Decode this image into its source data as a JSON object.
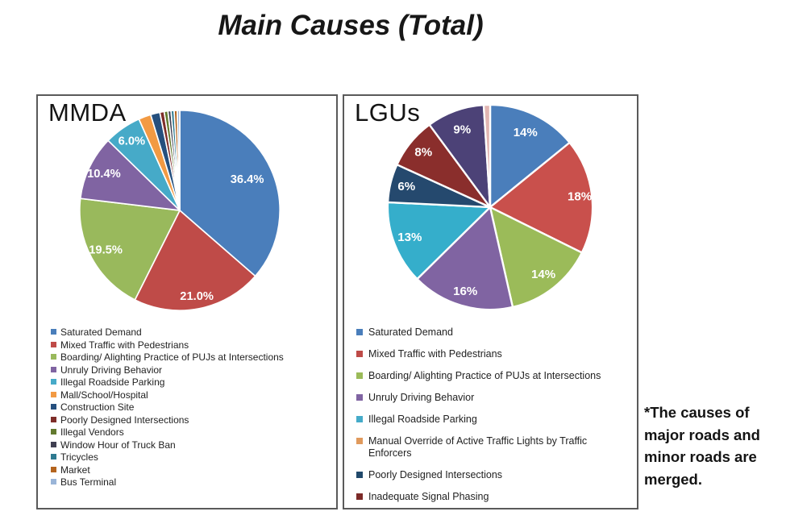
{
  "title": "Main Causes (Total)",
  "note": "*The causes of major roads and minor roads are merged.",
  "chart_data": [
    {
      "type": "pie",
      "title": "MMDA",
      "value_unit": "percent",
      "start_angle_deg": 0,
      "direction": "clockwise",
      "legend_position": "bottom-left",
      "slices": [
        {
          "label": "Saturated Demand",
          "value": 36.4,
          "display": "36.4%",
          "color": "#4a7ebb",
          "lr": 0.74
        },
        {
          "label": "Mixed Traffic with Pedestrians",
          "value": 21.0,
          "display": "21.0%",
          "color": "#bf4b48",
          "lr": 0.88
        },
        {
          "label": "Boarding/ Alighting Practice of PUJs at Intersections",
          "value": 19.5,
          "display": "19.5%",
          "color": "#99b95c",
          "lr": 0.84
        },
        {
          "label": "Unruly Driving Behavior",
          "value": 10.4,
          "display": "10.4%",
          "color": "#8064a2",
          "lr": 0.84
        },
        {
          "label": "Illegal Roadside Parking",
          "value": 6.0,
          "display": "6.0%",
          "color": "#46aac8",
          "lr": 0.84
        },
        {
          "label": "Mall/School/Hospital",
          "value": 2.0,
          "display": "",
          "color": "#f29a43"
        },
        {
          "label": "Construction Site",
          "value": 1.5,
          "display": "",
          "color": "#26507e"
        },
        {
          "label": "Poorly Designed Intersections",
          "value": 0.7,
          "display": "",
          "color": "#7e2d29"
        },
        {
          "label": "Illegal Vendors",
          "value": 0.6,
          "display": "",
          "color": "#637a2f"
        },
        {
          "label": "Window Hour of Truck Ban",
          "value": 0.5,
          "display": "",
          "color": "#3f3f51"
        },
        {
          "label": "Tricycles",
          "value": 0.5,
          "display": "",
          "color": "#2e7a90"
        },
        {
          "label": "Market",
          "value": 0.5,
          "display": "",
          "color": "#b4641e"
        },
        {
          "label": "Bus Terminal",
          "value": 0.4,
          "display": "",
          "color": "#9ab5d8"
        }
      ],
      "legend": [
        {
          "label": "Saturated Demand",
          "color": "#4a7ebb"
        },
        {
          "label": "Mixed Traffic with Pedestrians",
          "color": "#bf4b48"
        },
        {
          "label": "Boarding/ Alighting Practice of PUJs at Intersections",
          "color": "#99b95c"
        },
        {
          "label": "Unruly Driving Behavior",
          "color": "#8064a2"
        },
        {
          "label": "Illegal Roadside Parking",
          "color": "#46aac8"
        },
        {
          "label": "Mall/School/Hospital",
          "color": "#f29a43"
        },
        {
          "label": "Construction Site",
          "color": "#26507e"
        },
        {
          "label": "Poorly Designed Intersections",
          "color": "#7e2d29"
        },
        {
          "label": "Illegal Vendors",
          "color": "#637a2f"
        },
        {
          "label": "Window Hour of Truck Ban",
          "color": "#3f3f51"
        },
        {
          "label": "Tricycles",
          "color": "#2e7a90"
        },
        {
          "label": "Market",
          "color": "#b4641e"
        },
        {
          "label": "Bus Terminal",
          "color": "#9ab5d8"
        }
      ]
    },
    {
      "type": "pie",
      "title": "LGUs",
      "value_unit": "percent",
      "start_angle_deg": 0,
      "direction": "clockwise",
      "legend_position": "bottom-left",
      "slices": [
        {
          "label": "Saturated Demand",
          "value": 14,
          "display": "14%",
          "color": "#4a7ebb",
          "lr": 0.8
        },
        {
          "label": "Mixed Traffic with Pedestrians",
          "value": 18,
          "display": "18%",
          "color": "#c9504c",
          "lr": 0.88
        },
        {
          "label": "Boarding/ Alighting Practice of PUJs at Intersections",
          "value": 14,
          "display": "14%",
          "color": "#9bbb59",
          "lr": 0.84
        },
        {
          "label": "Unruly Driving Behavior",
          "value": 16,
          "display": "16%",
          "color": "#8064a2",
          "lr": 0.86
        },
        {
          "label": "Illegal Roadside Parking",
          "value": 13,
          "display": "13%",
          "color": "#35aecb",
          "lr": 0.84
        },
        {
          "label": "Poorly Designed Intersections",
          "value": 6,
          "display": "6%",
          "color": "#25496e",
          "lr": 0.84
        },
        {
          "label": "Inadequate Signal Phasing",
          "value": 8,
          "display": "8%",
          "color": "#8a2e2c",
          "lr": 0.84
        },
        {
          "label": "",
          "value": 9,
          "display": "9%",
          "color": "#4c4277",
          "lr": 0.8
        },
        {
          "label": "",
          "value": 1,
          "display": "",
          "color": "#e2b6b2"
        }
      ],
      "legend": [
        {
          "label": "Saturated Demand",
          "color": "#4a7ebb"
        },
        {
          "label": "Mixed Traffic with Pedestrians",
          "color": "#be4b48"
        },
        {
          "label": "Boarding/ Alighting Practice of PUJs at Intersections",
          "color": "#9bbb59"
        },
        {
          "label": "Unruly Driving Behavior",
          "color": "#8064a2"
        },
        {
          "label": "Illegal Roadside Parking",
          "color": "#45abc9"
        },
        {
          "label": "Manual Override of Active Traffic Lights by Traffic Enforcers",
          "color": "#e09a5d"
        },
        {
          "label": "Poorly Designed Intersections",
          "color": "#21496b"
        },
        {
          "label": "Inadequate Signal Phasing",
          "color": "#7c2a28"
        }
      ]
    }
  ]
}
